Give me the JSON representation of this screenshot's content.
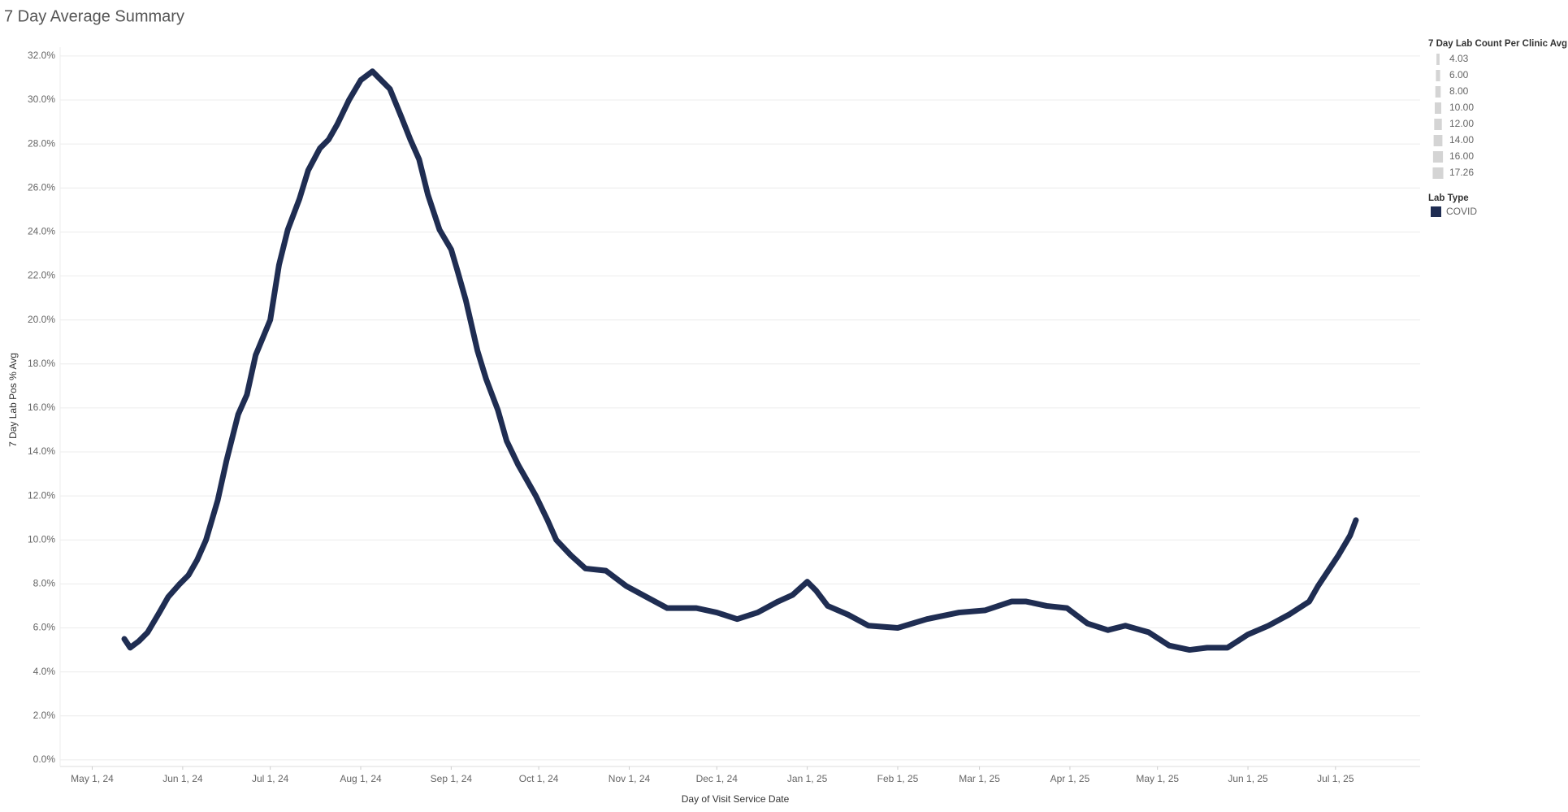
{
  "chart_data": {
    "type": "line",
    "title": "7 Day Average Summary",
    "x_label": "Day of Visit Service Date",
    "y_label": "7 Day Lab Pos % Avg",
    "x": [
      "2024-05-12",
      "2024-05-14",
      "2024-05-17",
      "2024-05-20",
      "2024-05-24",
      "2024-05-27",
      "2024-05-31",
      "2024-06-03",
      "2024-06-06",
      "2024-06-09",
      "2024-06-13",
      "2024-06-16",
      "2024-06-20",
      "2024-06-23",
      "2024-06-26",
      "2024-07-01",
      "2024-07-04",
      "2024-07-07",
      "2024-07-11",
      "2024-07-14",
      "2024-07-18",
      "2024-07-21",
      "2024-07-24",
      "2024-07-28",
      "2024-08-01",
      "2024-08-05",
      "2024-08-08",
      "2024-08-11",
      "2024-08-15",
      "2024-08-18",
      "2024-08-21",
      "2024-08-24",
      "2024-08-28",
      "2024-09-01",
      "2024-09-03",
      "2024-09-06",
      "2024-09-10",
      "2024-09-13",
      "2024-09-17",
      "2024-09-20",
      "2024-09-24",
      "2024-09-27",
      "2024-09-30",
      "2024-10-04",
      "2024-10-07",
      "2024-10-12",
      "2024-10-17",
      "2024-10-24",
      "2024-10-31",
      "2024-11-07",
      "2024-11-14",
      "2024-11-24",
      "2024-12-01",
      "2024-12-08",
      "2024-12-15",
      "2024-12-22",
      "2024-12-27",
      "2025-01-01",
      "2025-01-04",
      "2025-01-08",
      "2025-01-15",
      "2025-01-22",
      "2025-02-01",
      "2025-02-11",
      "2025-02-22",
      "2025-03-03",
      "2025-03-12",
      "2025-03-17",
      "2025-03-24",
      "2025-03-31",
      "2025-04-07",
      "2025-04-14",
      "2025-04-20",
      "2025-04-28",
      "2025-05-05",
      "2025-05-12",
      "2025-05-18",
      "2025-05-25",
      "2025-06-01",
      "2025-06-08",
      "2025-06-15",
      "2025-06-22",
      "2025-06-25",
      "2025-06-29",
      "2025-07-02",
      "2025-07-06",
      "2025-07-08"
    ],
    "series": [
      {
        "name": "COVID",
        "color": "#1f2d52",
        "values": [
          5.5,
          5.1,
          5.4,
          5.8,
          6.7,
          7.4,
          8.0,
          8.4,
          9.1,
          10.0,
          11.8,
          13.6,
          15.7,
          16.6,
          18.4,
          20.0,
          22.5,
          24.1,
          25.5,
          26.8,
          27.8,
          28.2,
          28.9,
          30.0,
          30.9,
          31.3,
          30.9,
          30.5,
          29.2,
          28.2,
          27.3,
          25.7,
          24.1,
          23.2,
          22.3,
          20.9,
          18.6,
          17.3,
          15.9,
          14.5,
          13.4,
          12.7,
          12.0,
          10.9,
          10.0,
          9.3,
          8.7,
          8.6,
          7.9,
          7.4,
          6.9,
          6.9,
          6.7,
          6.4,
          6.7,
          7.2,
          7.5,
          8.1,
          7.7,
          7.0,
          6.6,
          6.1,
          6.0,
          6.4,
          6.7,
          6.8,
          7.2,
          7.2,
          7.0,
          6.9,
          6.2,
          5.9,
          6.1,
          5.8,
          5.2,
          5.0,
          5.1,
          5.1,
          5.7,
          6.1,
          6.6,
          7.2,
          7.9,
          8.7,
          9.3,
          10.2,
          10.9
        ]
      }
    ],
    "xlim": [
      "2024-04-20",
      "2025-07-30"
    ],
    "xticks": [
      {
        "value": "2024-05-01",
        "label": "May 1, 24"
      },
      {
        "value": "2024-06-01",
        "label": "Jun 1, 24"
      },
      {
        "value": "2024-07-01",
        "label": "Jul 1, 24"
      },
      {
        "value": "2024-08-01",
        "label": "Aug 1, 24"
      },
      {
        "value": "2024-09-01",
        "label": "Sep 1, 24"
      },
      {
        "value": "2024-10-01",
        "label": "Oct 1, 24"
      },
      {
        "value": "2024-11-01",
        "label": "Nov 1, 24"
      },
      {
        "value": "2024-12-01",
        "label": "Dec 1, 24"
      },
      {
        "value": "2025-01-01",
        "label": "Jan 1, 25"
      },
      {
        "value": "2025-02-01",
        "label": "Feb 1, 25"
      },
      {
        "value": "2025-03-01",
        "label": "Mar 1, 25"
      },
      {
        "value": "2025-04-01",
        "label": "Apr 1, 25"
      },
      {
        "value": "2025-05-01",
        "label": "May 1, 25"
      },
      {
        "value": "2025-06-01",
        "label": "Jun 1, 25"
      },
      {
        "value": "2025-07-01",
        "label": "Jul 1, 25"
      }
    ],
    "ylim": [
      -0.3,
      32.4
    ],
    "yticks": [
      {
        "value": 0,
        "label": "0.0%"
      },
      {
        "value": 2,
        "label": "2.0%"
      },
      {
        "value": 4,
        "label": "4.0%"
      },
      {
        "value": 6,
        "label": "6.0%"
      },
      {
        "value": 8,
        "label": "8.0%"
      },
      {
        "value": 10,
        "label": "10.0%"
      },
      {
        "value": 12,
        "label": "12.0%"
      },
      {
        "value": 14,
        "label": "14.0%"
      },
      {
        "value": 16,
        "label": "16.0%"
      },
      {
        "value": 18,
        "label": "18.0%"
      },
      {
        "value": 20,
        "label": "20.0%"
      },
      {
        "value": 22,
        "label": "22.0%"
      },
      {
        "value": 24,
        "label": "24.0%"
      },
      {
        "value": 26,
        "label": "26.0%"
      },
      {
        "value": 28,
        "label": "28.0%"
      },
      {
        "value": 30,
        "label": "30.0%"
      },
      {
        "value": 32,
        "label": "32.0%"
      }
    ],
    "grid": true,
    "legend": "right",
    "size_legend": {
      "title": "7 Day Lab Count Per Clinic Avg",
      "values": [
        4.03,
        {
          "value": 6,
          "label": "6.00"
        },
        {
          "value": 8,
          "label": "8.00"
        },
        {
          "value": 10,
          "label": "10.00"
        },
        {
          "value": 12,
          "label": "12.00"
        },
        {
          "value": 14,
          "label": "14.00"
        },
        {
          "value": 16,
          "label": "16.00"
        },
        17.26
      ]
    },
    "color_legend_title": "Lab Type"
  }
}
